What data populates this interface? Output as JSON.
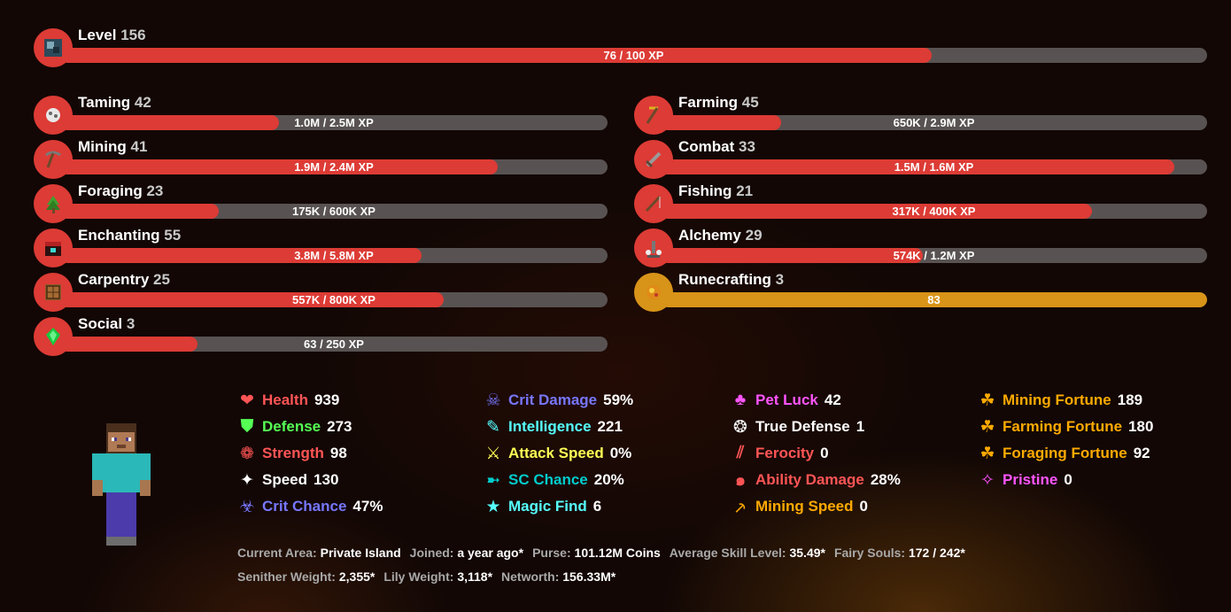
{
  "level": {
    "label": "Level",
    "value": "156",
    "xp": "76 / 100 XP",
    "progress": 0.76
  },
  "skills_left": [
    {
      "name": "Taming",
      "level": "42",
      "xp": "1.0M / 2.5M XP",
      "progress": 0.4,
      "icon": "taming-icon"
    },
    {
      "name": "Mining",
      "level": "41",
      "xp": "1.9M / 2.4M XP",
      "progress": 0.8,
      "icon": "pickaxe-icon"
    },
    {
      "name": "Foraging",
      "level": "23",
      "xp": "175K / 600K XP",
      "progress": 0.29,
      "icon": "sapling-icon"
    },
    {
      "name": "Enchanting",
      "level": "55",
      "xp": "3.8M / 5.8M XP",
      "progress": 0.66,
      "icon": "enchanting-table-icon"
    },
    {
      "name": "Carpentry",
      "level": "25",
      "xp": "557K / 800K XP",
      "progress": 0.7,
      "icon": "crafting-table-icon"
    },
    {
      "name": "Social",
      "level": "3",
      "xp": "63 / 250 XP",
      "progress": 0.25,
      "icon": "emerald-icon"
    }
  ],
  "skills_right": [
    {
      "name": "Farming",
      "level": "45",
      "xp": "650K / 2.9M XP",
      "progress": 0.22,
      "icon": "hoe-icon"
    },
    {
      "name": "Combat",
      "level": "33",
      "xp": "1.5M / 1.6M XP",
      "progress": 0.94,
      "icon": "sword-icon"
    },
    {
      "name": "Fishing",
      "level": "21",
      "xp": "317K / 400K XP",
      "progress": 0.79,
      "icon": "fishing-rod-icon"
    },
    {
      "name": "Alchemy",
      "level": "29",
      "xp": "574K / 1.2M XP",
      "progress": 0.48,
      "icon": "brewing-stand-icon"
    },
    {
      "name": "Runecrafting",
      "level": "3",
      "xp": "83",
      "progress": 1.0,
      "icon": "magma-cream-icon",
      "maxed": true
    }
  ],
  "stats_col1": [
    {
      "label": "Health",
      "value": "939",
      "color": "#ff5555",
      "icon": "heart-icon",
      "glyph": "❤"
    },
    {
      "label": "Defense",
      "value": "273",
      "color": "#55ff55",
      "icon": "shield-icon",
      "glyph": "⛊"
    },
    {
      "label": "Strength",
      "value": "98",
      "color": "#ff5555",
      "icon": "strength-icon",
      "glyph": "❁"
    },
    {
      "label": "Speed",
      "value": "130",
      "color": "#ffffff",
      "icon": "speed-icon",
      "glyph": "✦"
    },
    {
      "label": "Crit Chance",
      "value": "47%",
      "color": "#7777ff",
      "icon": "crit-chance-icon",
      "glyph": "☣"
    }
  ],
  "stats_col2": [
    {
      "label": "Crit Damage",
      "value": "59%",
      "color": "#7777ff",
      "icon": "skull-icon",
      "glyph": "☠"
    },
    {
      "label": "Intelligence",
      "value": "221",
      "color": "#55ffff",
      "icon": "feather-icon",
      "glyph": "✎"
    },
    {
      "label": "Attack Speed",
      "value": "0%",
      "color": "#ffff55",
      "icon": "swords-icon",
      "glyph": "⚔"
    },
    {
      "label": "SC Chance",
      "value": "20%",
      "color": "#00cccc",
      "icon": "fish-icon",
      "glyph": "➼"
    },
    {
      "label": "Magic Find",
      "value": "6",
      "color": "#55ffff",
      "icon": "star-icon",
      "glyph": "★"
    }
  ],
  "stats_col3": [
    {
      "label": "Pet Luck",
      "value": "42",
      "color": "#ff55ff",
      "icon": "club-icon",
      "glyph": "♣"
    },
    {
      "label": "True Defense",
      "value": "1",
      "color": "#ffffff",
      "icon": "true-defense-icon",
      "glyph": "❂"
    },
    {
      "label": "Ferocity",
      "value": "0",
      "color": "#ff5555",
      "icon": "ferocity-icon",
      "glyph": "⫽"
    },
    {
      "label": "Ability Damage",
      "value": "28%",
      "color": "#ff5555",
      "icon": "spiral-icon",
      "glyph": "๑"
    },
    {
      "label": "Mining Speed",
      "value": "0",
      "color": "#ffaa00",
      "icon": "pickaxe-outline-icon",
      "glyph": "⸕"
    }
  ],
  "stats_col4": [
    {
      "label": "Mining Fortune",
      "value": "189",
      "color": "#ffaa00",
      "icon": "clover-icon",
      "glyph": "☘"
    },
    {
      "label": "Farming Fortune",
      "value": "180",
      "color": "#ffaa00",
      "icon": "clover-icon",
      "glyph": "☘"
    },
    {
      "label": "Foraging Fortune",
      "value": "92",
      "color": "#ffaa00",
      "icon": "clover-icon",
      "glyph": "☘"
    },
    {
      "label": "Pristine",
      "value": "0",
      "color": "#ff55ff",
      "icon": "sparkle-icon",
      "glyph": "✧"
    }
  ],
  "info_row1": [
    {
      "k": "Current Area:",
      "v": "Private Island"
    },
    {
      "k": "Joined:",
      "v": "a year ago*"
    },
    {
      "k": "Purse:",
      "v": "101.12M Coins"
    },
    {
      "k": "Average Skill Level:",
      "v": "35.49*"
    },
    {
      "k": "Fairy Souls:",
      "v": "172 / 242*"
    }
  ],
  "info_row2": [
    {
      "k": "Senither Weight:",
      "v": "2,355*"
    },
    {
      "k": "Lily Weight:",
      "v": "3,118*"
    },
    {
      "k": "Networth:",
      "v": "156.33M*"
    }
  ]
}
